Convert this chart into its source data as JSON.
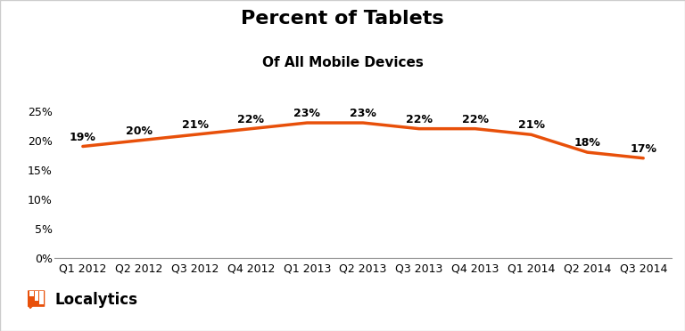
{
  "title": "Percent of Tablets",
  "subtitle": "Of All Mobile Devices",
  "categories": [
    "Q1 2012",
    "Q2 2012",
    "Q3 2012",
    "Q4 2012",
    "Q1 2013",
    "Q2 2013",
    "Q3 2013",
    "Q4 2013",
    "Q1 2014",
    "Q2 2014",
    "Q3 2014"
  ],
  "values": [
    19,
    20,
    21,
    22,
    23,
    23,
    22,
    22,
    21,
    18,
    17
  ],
  "line_color": "#E8500A",
  "line_width": 2.5,
  "background_color": "#ffffff",
  "yticks": [
    0,
    5,
    10,
    15,
    20,
    25
  ],
  "ytick_labels": [
    "0%",
    "5%",
    "10%",
    "15%",
    "20%",
    "25%"
  ],
  "ylim": [
    0,
    27
  ],
  "title_fontsize": 16,
  "subtitle_fontsize": 11,
  "label_fontsize": 9,
  "tick_fontsize": 9,
  "brand_text": "Localytics",
  "brand_color": "#E8500A",
  "border_color": "#cccccc"
}
